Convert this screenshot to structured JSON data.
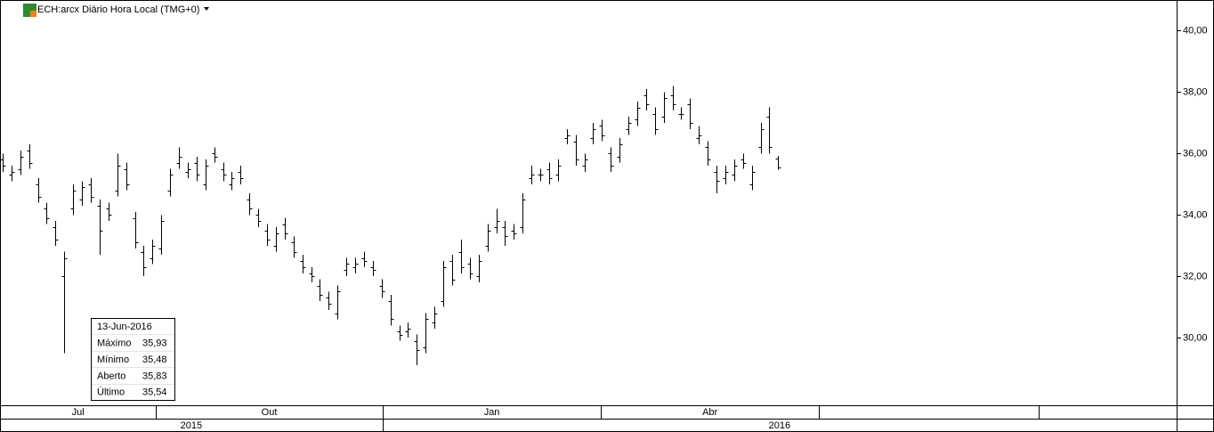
{
  "chart_data": {
    "type": "ohlc",
    "title": "ECH:arcx Diário Hora Local (TMG+0)",
    "color": "#000000",
    "open": [
      35.8,
      35.3,
      35.5,
      36.1,
      35.0,
      34.2,
      33.6,
      32.0,
      34.2,
      34.5,
      35.0,
      34.3,
      34.2,
      34.8,
      35.5,
      33.9,
      32.8,
      32.6,
      32.9,
      34.8,
      35.7,
      35.4,
      35.7,
      35.0,
      36.0,
      35.5,
      35.0,
      35.4,
      34.5,
      34.0,
      33.5,
      33.0,
      33.7,
      33.1,
      32.5,
      32.1,
      31.7,
      31.3,
      30.8,
      32.2,
      32.3,
      32.6,
      32.3,
      31.7,
      31.2,
      30.2,
      30.2,
      29.9,
      29.7,
      30.5,
      31.2,
      32.5,
      32.8,
      32.4,
      32.0,
      33.0,
      33.6,
      33.6,
      33.5,
      33.6,
      35.2,
      35.3,
      35.5,
      35.3,
      36.5,
      36.4,
      35.6,
      36.5,
      36.9,
      36.0,
      35.9,
      36.8,
      37.1,
      37.9,
      37.3,
      37.2,
      37.9,
      37.3,
      37.6,
      36.5,
      36.2,
      35.4,
      35.2,
      35.3,
      35.8,
      35.0,
      36.2,
      37.2,
      35.83
    ],
    "high": [
      36.0,
      35.6,
      36.1,
      36.3,
      35.2,
      34.4,
      33.8,
      32.8,
      35.0,
      35.1,
      35.2,
      34.5,
      34.4,
      36.0,
      35.7,
      34.1,
      33.0,
      33.2,
      34.0,
      35.5,
      36.2,
      35.7,
      35.9,
      35.8,
      36.2,
      35.7,
      35.4,
      35.6,
      34.7,
      34.2,
      33.7,
      33.6,
      33.9,
      33.3,
      32.7,
      32.3,
      31.9,
      31.5,
      31.7,
      32.6,
      32.6,
      32.8,
      32.5,
      31.9,
      31.4,
      30.4,
      30.5,
      30.1,
      30.8,
      31.0,
      32.5,
      32.7,
      33.2,
      32.6,
      32.7,
      33.7,
      34.2,
      33.8,
      33.7,
      34.7,
      35.6,
      35.5,
      35.7,
      35.8,
      36.8,
      36.6,
      36.0,
      37.0,
      37.1,
      36.2,
      36.5,
      37.2,
      37.7,
      38.1,
      37.5,
      38.0,
      38.2,
      37.5,
      37.8,
      36.9,
      36.4,
      35.6,
      35.6,
      35.8,
      36.0,
      35.6,
      37.0,
      37.5,
      35.93
    ],
    "low": [
      35.4,
      35.1,
      35.3,
      35.5,
      34.4,
      33.7,
      33.0,
      29.5,
      34.0,
      34.3,
      34.4,
      32.7,
      33.8,
      34.6,
      34.8,
      32.9,
      32.0,
      32.4,
      32.7,
      34.6,
      35.5,
      35.2,
      35.1,
      34.8,
      35.7,
      35.1,
      34.8,
      35.0,
      34.0,
      33.6,
      33.0,
      32.8,
      33.2,
      32.6,
      32.1,
      31.8,
      31.2,
      30.9,
      30.6,
      32.0,
      32.1,
      32.3,
      32.0,
      31.3,
      30.4,
      29.9,
      30.0,
      29.1,
      29.5,
      30.3,
      31.0,
      31.7,
      32.1,
      31.9,
      31.8,
      32.8,
      33.4,
      33.0,
      33.2,
      33.4,
      35.0,
      35.1,
      35.0,
      35.1,
      36.3,
      35.6,
      35.4,
      36.3,
      36.4,
      35.4,
      35.7,
      36.6,
      36.9,
      37.4,
      36.6,
      37.0,
      37.4,
      37.1,
      36.8,
      36.3,
      35.6,
      34.7,
      35.0,
      35.1,
      35.5,
      34.8,
      36.0,
      36.0,
      35.48
    ],
    "close": [
      35.6,
      35.4,
      35.9,
      35.7,
      34.6,
      33.9,
      33.2,
      32.6,
      34.8,
      34.9,
      34.6,
      33.5,
      34.0,
      35.6,
      35.0,
      33.1,
      32.3,
      33.0,
      33.8,
      35.3,
      35.9,
      35.5,
      35.3,
      35.6,
      35.9,
      35.3,
      35.2,
      35.2,
      34.2,
      33.8,
      33.2,
      33.4,
      33.4,
      32.8,
      32.3,
      32.0,
      31.4,
      31.1,
      31.5,
      32.4,
      32.4,
      32.5,
      32.2,
      31.5,
      30.6,
      30.1,
      30.3,
      29.6,
      30.6,
      30.8,
      32.3,
      31.9,
      32.3,
      32.1,
      32.5,
      33.5,
      33.8,
      33.3,
      33.4,
      34.5,
      35.3,
      35.3,
      35.2,
      35.6,
      36.6,
      35.8,
      35.8,
      36.8,
      36.6,
      35.6,
      36.3,
      37.0,
      37.5,
      37.6,
      36.8,
      37.8,
      37.6,
      37.3,
      37.0,
      36.6,
      35.8,
      35.1,
      35.4,
      35.6,
      35.7,
      35.4,
      36.8,
      36.2,
      35.54
    ],
    "xlim": [
      -0.3,
      133.2
    ],
    "ylim": [
      27.8,
      41.0
    ],
    "yticks": [
      {
        "value": 30,
        "label": "30,00"
      },
      {
        "value": 32,
        "label": "32,00"
      },
      {
        "value": 34,
        "label": "34,00"
      },
      {
        "value": 36,
        "label": "36,00"
      },
      {
        "value": 38,
        "label": "38,00"
      },
      {
        "value": 40,
        "label": "40,00"
      }
    ],
    "months": [
      {
        "label": "Jul",
        "start": -0.3,
        "end": 17.4
      },
      {
        "label": "Out",
        "start": 17.4,
        "end": 43.1
      },
      {
        "label": "Jan",
        "start": 43.1,
        "end": 67.9
      },
      {
        "label": "Abr",
        "start": 67.9,
        "end": 92.6
      },
      {
        "label": null,
        "start": 92.6,
        "end": 117.5
      },
      {
        "label": null,
        "start": 117.5,
        "end": 133.2
      }
    ],
    "years": [
      {
        "label": "2015",
        "start": -0.3,
        "end": 43.1
      },
      {
        "label": "2016",
        "start": 43.1,
        "end": 133.2
      }
    ],
    "infobox": {
      "date": "13-Jun-2016",
      "rows": [
        {
          "label": "Máximo",
          "value": 35.93,
          "value_label": "35,93"
        },
        {
          "label": "Mínimo",
          "value": 35.48,
          "value_label": "35,48"
        },
        {
          "label": "Aberto",
          "value": 35.83,
          "value_label": "35,83"
        },
        {
          "label": "Último",
          "value": 35.54,
          "value_label": "35,54"
        }
      ]
    }
  }
}
